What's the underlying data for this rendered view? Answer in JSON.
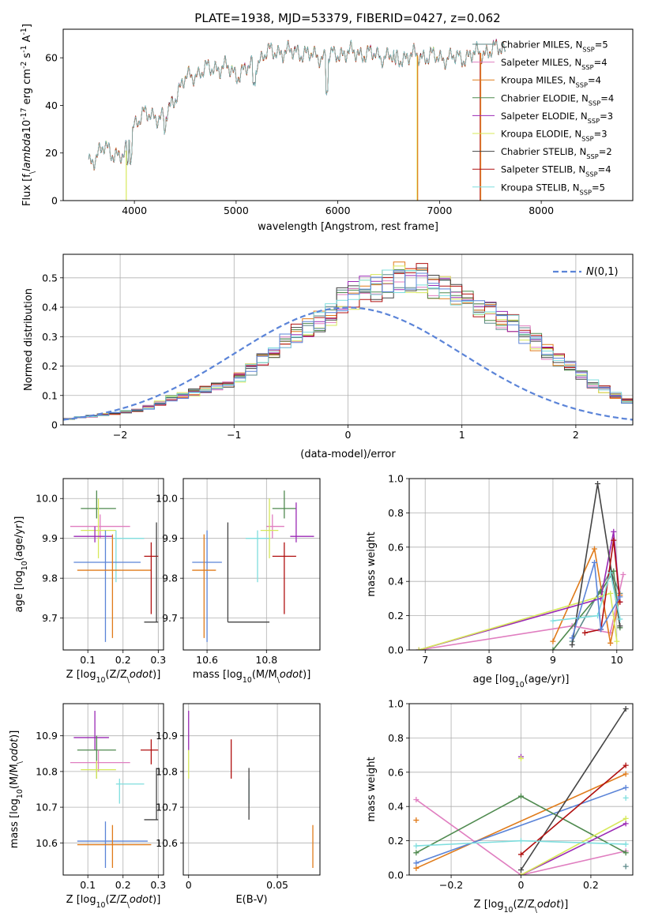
{
  "chart_data": [
    {
      "panel": "spectrum",
      "type": "line",
      "title": "PLATE=1938, MJD=53379, FIBERID=0427, z=0.062",
      "xlabel": "wavelength [Angstrom, rest frame]",
      "ylabel": "Flux [f$_\\lambda$10$^{-17}$ erg cm$^{-2}$ s$^{-1}$ A$^{-1}$]",
      "xlim": [
        3300,
        8900
      ],
      "ylim": [
        0,
        72
      ],
      "xticks": [
        4000,
        5000,
        6000,
        7000,
        8000
      ],
      "yticks": [
        0,
        20,
        40,
        60
      ],
      "grid": false,
      "legend_position": "top-right",
      "legend": [
        {
          "label": "Chabrier MILES, N",
          "sub": "SSP",
          "tail": "=5",
          "color": "#5d8a8a"
        },
        {
          "label": "Salpeter MILES, N",
          "sub": "SSP",
          "tail": "=4",
          "color": "#e07ec0"
        },
        {
          "label": "Kroupa MILES, N",
          "sub": "SSP",
          "tail": "=4",
          "color": "#e07b1a"
        },
        {
          "label": "Chabrier ELODIE, N",
          "sub": "SSP",
          "tail": "=4",
          "color": "#4f8a4f"
        },
        {
          "label": "Salpeter ELODIE, N",
          "sub": "SSP",
          "tail": "=3",
          "color": "#9b2ab5"
        },
        {
          "label": "Kroupa ELODIE, N",
          "sub": "SSP",
          "tail": "=3",
          "color": "#d7e85a"
        },
        {
          "label": "Chabrier STELIB, N",
          "sub": "SSP",
          "tail": "=2",
          "color": "#444444"
        },
        {
          "label": "Salpeter STELIB, N",
          "sub": "SSP",
          "tail": "=4",
          "color": "#b01010"
        },
        {
          "label": "Kroupa STELIB, N",
          "sub": "SSP",
          "tail": "=5",
          "color": "#7fdede"
        }
      ],
      "continuum": {
        "x": [
          3550,
          3700,
          3800,
          3900,
          4000,
          4100,
          4200,
          4300,
          4400,
          4500,
          4600,
          4700,
          4800,
          4900,
          5000,
          5100,
          5200,
          5300,
          5400,
          5500,
          5600,
          5700,
          5800,
          5900,
          6000,
          6200,
          6400,
          6600,
          6800,
          7000,
          7200,
          7400,
          7600,
          7800,
          8000,
          8200,
          8400,
          8600,
          8800
        ],
        "y": [
          16,
          22,
          20,
          18,
          33,
          36,
          36,
          34,
          44,
          51,
          53,
          55,
          56,
          56,
          53,
          55,
          58,
          62,
          63,
          62,
          63,
          61,
          61,
          60,
          62,
          62,
          61,
          60,
          61,
          60,
          60,
          62,
          64,
          63,
          62,
          60,
          60,
          58,
          58
        ]
      },
      "dropouts": [
        {
          "x": 3920,
          "color": "#d7e85a"
        },
        {
          "x": 6780,
          "color": "#d7e85a"
        },
        {
          "x": 6785,
          "color": "#e07b1a"
        },
        {
          "x": 7400,
          "color": "#b01010"
        },
        {
          "x": 7405,
          "color": "#e07b1a"
        }
      ]
    },
    {
      "panel": "residuals",
      "type": "histogram",
      "xlabel": "(data-model)/error",
      "ylabel": "Normed distribution",
      "xlim": [
        -2.5,
        2.5
      ],
      "ylim": [
        0,
        0.58
      ],
      "xticks": [
        -2,
        -1,
        0,
        1,
        2
      ],
      "yticks": [
        0.0,
        0.1,
        0.2,
        0.3,
        0.4,
        0.5
      ],
      "grid": true,
      "legend_position": "top-right",
      "reference": {
        "label": "$\\mathcal{N}(0,1)$",
        "mean": 0,
        "sigma": 1,
        "color": "#5b84d8"
      },
      "bin_width": 0.1,
      "bin_start": -2.5,
      "envelope": [
        0.02,
        0.025,
        0.03,
        0.035,
        0.04,
        0.045,
        0.05,
        0.06,
        0.075,
        0.09,
        0.1,
        0.11,
        0.12,
        0.13,
        0.14,
        0.16,
        0.19,
        0.22,
        0.25,
        0.28,
        0.31,
        0.33,
        0.35,
        0.38,
        0.42,
        0.44,
        0.46,
        0.47,
        0.48,
        0.5,
        0.5,
        0.5,
        0.48,
        0.46,
        0.44,
        0.42,
        0.4,
        0.38,
        0.36,
        0.34,
        0.31,
        0.28,
        0.25,
        0.22,
        0.2,
        0.17,
        0.14,
        0.12,
        0.1,
        0.08
      ],
      "series": [
        {
          "color": "#5d8a8a"
        },
        {
          "color": "#e07ec0"
        },
        {
          "color": "#e07b1a"
        },
        {
          "color": "#4f8a4f"
        },
        {
          "color": "#9b2ab5"
        },
        {
          "color": "#d7e85a"
        },
        {
          "color": "#444444"
        },
        {
          "color": "#b01010"
        },
        {
          "color": "#7fdede"
        },
        {
          "color": "#5b84d8"
        }
      ]
    },
    {
      "panel": "age_vs_Z",
      "type": "errorbar",
      "xlabel": "Z [log$_{10}$(Z/Z$_\\odot$)]",
      "ylabel": "age  [log$_{10}$(age/yr)]",
      "xlim": [
        0.03,
        0.315
      ],
      "ylim": [
        9.62,
        10.05
      ],
      "xticks": [
        0.1,
        0.2,
        0.3
      ],
      "yticks": [
        9.7,
        9.8,
        9.9,
        10.0
      ],
      "grid": true,
      "points": [
        {
          "x": 0.125,
          "y": 9.975,
          "xerr": [
            0.08,
            0.18
          ],
          "yerr": [
            9.95,
            10.02
          ],
          "color": "#4f8a4f"
        },
        {
          "x": 0.135,
          "y": 9.93,
          "xerr": [
            0.05,
            0.22
          ],
          "yerr": [
            9.9,
            9.96
          ],
          "color": "#e07ec0"
        },
        {
          "x": 0.13,
          "y": 9.92,
          "xerr": [
            0.08,
            0.18
          ],
          "yerr": [
            9.85,
            10.0
          ],
          "color": "#d7e85a"
        },
        {
          "x": 0.12,
          "y": 9.905,
          "xerr": [
            0.06,
            0.17
          ],
          "yerr": [
            9.89,
            9.93
          ],
          "color": "#9b2ab5"
        },
        {
          "x": 0.18,
          "y": 9.9,
          "xerr": [
            0.17,
            0.26
          ],
          "yerr": [
            9.79,
            9.92
          ],
          "color": "#7fdede"
        },
        {
          "x": 0.15,
          "y": 9.84,
          "xerr": [
            0.06,
            0.25
          ],
          "yerr": [
            9.64,
            9.92
          ],
          "color": "#5b84d8"
        },
        {
          "x": 0.17,
          "y": 9.82,
          "xerr": [
            0.07,
            0.28
          ],
          "yerr": [
            9.65,
            9.91
          ],
          "color": "#e07b1a"
        },
        {
          "x": 0.28,
          "y": 9.855,
          "xerr": [
            0.26,
            0.3
          ],
          "yerr": [
            9.71,
            9.89
          ],
          "color": "#b01010"
        },
        {
          "x": 0.295,
          "y": 9.69,
          "xerr": [
            0.26,
            0.3
          ],
          "yerr": [
            9.69,
            9.94
          ],
          "color": "#444444"
        }
      ]
    },
    {
      "panel": "age_vs_mass",
      "type": "errorbar",
      "xlabel": "mass [log$_{10}$(M/M$_\\odot$)]",
      "ylabel": "",
      "xlim": [
        10.52,
        10.98
      ],
      "ylim": [
        9.62,
        10.05
      ],
      "xticks": [
        10.6,
        10.8
      ],
      "yticks": [
        9.7,
        9.8,
        9.9,
        10.0
      ],
      "grid": true,
      "points": [
        {
          "x": 10.86,
          "y": 9.975,
          "xerr": [
            10.82,
            10.9
          ],
          "yerr": [
            9.95,
            10.02
          ],
          "color": "#4f8a4f"
        },
        {
          "x": 10.82,
          "y": 9.93,
          "xerr": [
            10.8,
            10.86
          ],
          "yerr": [
            9.9,
            9.96
          ],
          "color": "#e07ec0"
        },
        {
          "x": 10.81,
          "y": 9.92,
          "xerr": [
            10.78,
            10.84
          ],
          "yerr": [
            9.85,
            10.0
          ],
          "color": "#d7e85a"
        },
        {
          "x": 10.9,
          "y": 9.905,
          "xerr": [
            10.88,
            10.96
          ],
          "yerr": [
            9.89,
            9.99
          ],
          "color": "#9b2ab5"
        },
        {
          "x": 10.77,
          "y": 9.9,
          "xerr": [
            10.73,
            10.81
          ],
          "yerr": [
            9.79,
            9.92
          ],
          "color": "#7fdede"
        },
        {
          "x": 10.6,
          "y": 9.84,
          "xerr": [
            10.55,
            10.65
          ],
          "yerr": [
            9.64,
            9.92
          ],
          "color": "#5b84d8"
        },
        {
          "x": 10.59,
          "y": 9.82,
          "xerr": [
            10.55,
            10.63
          ],
          "yerr": [
            9.65,
            9.91
          ],
          "color": "#e07b1a"
        },
        {
          "x": 10.86,
          "y": 9.855,
          "xerr": [
            10.82,
            10.9
          ],
          "yerr": [
            9.71,
            9.89
          ],
          "color": "#b01010"
        },
        {
          "x": 10.67,
          "y": 9.69,
          "xerr": [
            10.67,
            10.81
          ],
          "yerr": [
            9.69,
            9.94
          ],
          "color": "#444444"
        }
      ]
    },
    {
      "panel": "weight_vs_age",
      "type": "line",
      "xlabel": "age  [log$_{10}$(age/yr)]",
      "ylabel": "mass weight",
      "xlim": [
        6.75,
        10.25
      ],
      "ylim": [
        0,
        1.0
      ],
      "xticks": [
        7,
        8,
        9,
        10
      ],
      "yticks": [
        0.0,
        0.2,
        0.4,
        0.6,
        0.8,
        1.0
      ],
      "grid": true,
      "series": [
        {
          "color": "#5d8a8a",
          "x": [
            9.3,
            9.9,
            10.05
          ],
          "y": [
            0.05,
            0.46,
            0.33
          ]
        },
        {
          "color": "#e07ec0",
          "x": [
            6.9,
            9.3,
            9.9,
            10.1
          ],
          "y": [
            0.0,
            0.14,
            0.1,
            0.44
          ]
        },
        {
          "color": "#e07b1a",
          "x": [
            9.0,
            9.65,
            9.9,
            10.05
          ],
          "y": [
            0.05,
            0.59,
            0.04,
            0.32
          ]
        },
        {
          "color": "#4f8a4f",
          "x": [
            9.0,
            9.75,
            9.95,
            10.05
          ],
          "y": [
            0.0,
            0.34,
            0.46,
            0.13
          ]
        },
        {
          "color": "#9b2ab5",
          "x": [
            6.9,
            9.75,
            9.95,
            10.05
          ],
          "y": [
            0.0,
            0.3,
            0.69,
            0.28
          ]
        },
        {
          "color": "#d7e85a",
          "x": [
            6.9,
            9.9,
            10.0
          ],
          "y": [
            0.0,
            0.33,
            0.05
          ]
        },
        {
          "color": "#444444",
          "x": [
            9.3,
            9.7,
            10.05
          ],
          "y": [
            0.03,
            0.97,
            0.14
          ]
        },
        {
          "color": "#b01010",
          "x": [
            9.5,
            9.75,
            9.95,
            10.05
          ],
          "y": [
            0.1,
            0.12,
            0.64,
            0.28
          ]
        },
        {
          "color": "#7fdede",
          "x": [
            9.0,
            9.7,
            9.9,
            10.05
          ],
          "y": [
            0.17,
            0.2,
            0.45,
            0.18
          ]
        },
        {
          "color": "#5b84d8",
          "x": [
            9.3,
            9.65,
            9.75,
            10.05
          ],
          "y": [
            0.07,
            0.51,
            0.12,
            0.31
          ]
        }
      ]
    },
    {
      "panel": "mass_vs_Z",
      "type": "errorbar",
      "xlabel": "Z [log$_{10}$(Z/Z$_\\odot$)]",
      "ylabel": "mass [log$_{10}$(M/M$_\\odot$)]",
      "xlim": [
        0.03,
        0.315
      ],
      "ylim": [
        10.51,
        10.99
      ],
      "xticks": [
        0.1,
        0.2,
        0.3
      ],
      "yticks": [
        10.6,
        10.7,
        10.8,
        10.9
      ],
      "grid": true,
      "points": [
        {
          "x": 0.12,
          "y": 10.895,
          "xerr": [
            0.06,
            0.16
          ],
          "yerr": [
            10.86,
            10.97
          ],
          "color": "#9b2ab5"
        },
        {
          "x": 0.125,
          "y": 10.86,
          "xerr": [
            0.07,
            0.18
          ],
          "yerr": [
            10.78,
            10.9
          ],
          "color": "#4f8a4f"
        },
        {
          "x": 0.13,
          "y": 10.825,
          "xerr": [
            0.05,
            0.22
          ],
          "yerr": [
            10.8,
            10.86
          ],
          "color": "#e07ec0"
        },
        {
          "x": 0.125,
          "y": 10.805,
          "xerr": [
            0.08,
            0.18
          ],
          "yerr": [
            10.78,
            10.83
          ],
          "color": "#d7e85a"
        },
        {
          "x": 0.28,
          "y": 10.86,
          "xerr": [
            0.25,
            0.3
          ],
          "yerr": [
            10.82,
            10.89
          ],
          "color": "#b01010"
        },
        {
          "x": 0.19,
          "y": 10.765,
          "xerr": [
            0.18,
            0.26
          ],
          "yerr": [
            10.71,
            10.78
          ],
          "color": "#7fdede"
        },
        {
          "x": 0.295,
          "y": 10.665,
          "xerr": [
            0.26,
            0.3
          ],
          "yerr": [
            10.665,
            10.81
          ],
          "color": "#444444"
        },
        {
          "x": 0.15,
          "y": 10.605,
          "xerr": [
            0.07,
            0.27
          ],
          "yerr": [
            10.53,
            10.66
          ],
          "color": "#5b84d8"
        },
        {
          "x": 0.17,
          "y": 10.595,
          "xerr": [
            0.07,
            0.28
          ],
          "yerr": [
            10.53,
            10.65
          ],
          "color": "#e07b1a"
        }
      ]
    },
    {
      "panel": "mass_vs_EBV",
      "type": "errorbar",
      "xlabel": "E(B-V)",
      "ylabel": "",
      "xlim": [
        -0.003,
        0.074
      ],
      "ylim": [
        10.51,
        10.99
      ],
      "xticks": [
        0.0,
        0.05
      ],
      "yticks": [
        10.6,
        10.7,
        10.8,
        10.9
      ],
      "grid": true,
      "points": [
        {
          "x": 0.0,
          "y": 10.895,
          "yerr": [
            10.86,
            10.97
          ],
          "color": "#9b2ab5"
        },
        {
          "x": 0.0,
          "y": 10.825,
          "yerr": [
            10.78,
            10.86
          ],
          "color": "#d7e85a"
        },
        {
          "x": 0.024,
          "y": 10.86,
          "yerr": [
            10.78,
            10.89
          ],
          "color": "#b01010"
        },
        {
          "x": 0.034,
          "y": 10.765,
          "yerr": [
            10.71,
            10.78
          ],
          "color": "#7fdede"
        },
        {
          "x": 0.034,
          "y": 10.74,
          "yerr": [
            10.665,
            10.81
          ],
          "color": "#444444"
        },
        {
          "x": 0.07,
          "y": 10.595,
          "yerr": [
            10.53,
            10.65
          ],
          "color": "#e07b1a"
        }
      ]
    },
    {
      "panel": "weight_vs_Z",
      "type": "line",
      "xlabel": "Z [log$_{10}$(Z/Z$_\\odot$)]",
      "ylabel": "mass weight",
      "xlim": [
        -0.32,
        0.32
      ],
      "ylim": [
        0,
        1.0
      ],
      "xticks": [
        -0.2,
        0.0,
        0.2
      ],
      "yticks": [
        0.0,
        0.2,
        0.4,
        0.6,
        0.8,
        1.0
      ],
      "grid": true,
      "series": [
        {
          "color": "#e07ec0",
          "x": [
            -0.3,
            0.0,
            0.3
          ],
          "y": [
            0.44,
            0.0,
            0.14
          ]
        },
        {
          "color": "#e07b1a",
          "x": [
            -0.3,
            0.3
          ],
          "y": [
            0.04,
            0.59
          ]
        },
        {
          "color": "#5b84d8",
          "x": [
            -0.3,
            0.3
          ],
          "y": [
            0.07,
            0.51
          ]
        },
        {
          "color": "#4f8a4f",
          "x": [
            -0.3,
            0.0,
            0.3
          ],
          "y": [
            0.13,
            0.46,
            0.13
          ]
        },
        {
          "color": "#9b2ab5",
          "x": [
            0.0,
            0.3
          ],
          "y": [
            0.0,
            0.3
          ]
        },
        {
          "color": "#d7e85a",
          "x": [
            0.0,
            0.3
          ],
          "y": [
            0.0,
            0.33
          ]
        },
        {
          "color": "#444444",
          "x": [
            0.0,
            0.3
          ],
          "y": [
            0.03,
            0.97
          ]
        },
        {
          "color": "#b01010",
          "x": [
            0.0,
            0.3
          ],
          "y": [
            0.12,
            0.64
          ]
        },
        {
          "color": "#7fdede",
          "x": [
            -0.3,
            0.0,
            0.3
          ],
          "y": [
            0.17,
            0.2,
            0.18
          ]
        }
      ],
      "markers": [
        {
          "x": 0.0,
          "y": 0.69,
          "color": "#9b2ab5"
        },
        {
          "x": 0.0,
          "y": 0.68,
          "color": "#d7e85a"
        },
        {
          "x": -0.3,
          "y": 0.32,
          "color": "#e07b1a"
        },
        {
          "x": 0.3,
          "y": 0.45,
          "color": "#7fdede"
        },
        {
          "x": 0.3,
          "y": 0.05,
          "color": "#5d8a8a"
        }
      ]
    }
  ]
}
